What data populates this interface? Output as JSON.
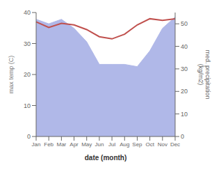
{
  "chart_data": {
    "type": "line",
    "categories": [
      "Jan",
      "Feb",
      "Mar",
      "Apr",
      "May",
      "Jun",
      "Jul",
      "Aug",
      "Sep",
      "Oct",
      "Nov",
      "Dec"
    ],
    "series": [
      {
        "type": "area",
        "color": "#b0b8e8",
        "axis": "y2",
        "values": [
          52,
          50,
          52,
          48,
          42,
          32,
          32,
          32,
          31,
          38,
          48,
          53
        ]
      },
      {
        "type": "line",
        "color": "#c0504d",
        "values": [
          37.0,
          35.2,
          36.5,
          36.0,
          34.5,
          32.2,
          31.5,
          33.0,
          36.0,
          38.0,
          37.5,
          38.0
        ]
      }
    ],
    "xlabel": "date (month)",
    "ylabel": "max temp (C)",
    "y2label": "med. precipitation\n(kg/m2)",
    "ylim": [
      0,
      40
    ],
    "yticks": [
      0,
      10,
      20,
      30,
      40
    ],
    "y2lim": [
      0,
      55
    ],
    "y2ticks": [
      0,
      10,
      20,
      30,
      40,
      50
    ],
    "grid": false
  }
}
